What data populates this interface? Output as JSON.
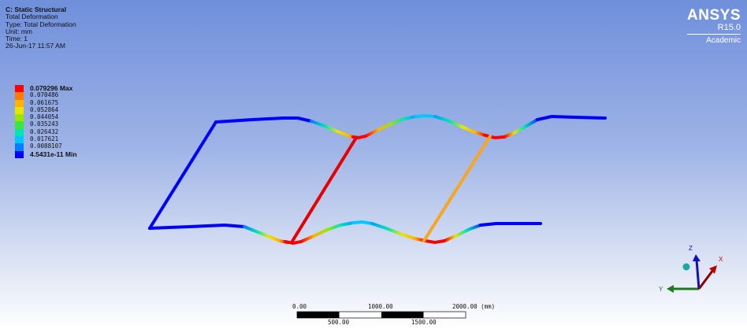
{
  "info": {
    "system": "C: Static Structural",
    "result": "Total Deformation",
    "type": "Type: Total Deformation",
    "unit": "Unit: mm",
    "time": "Time: 1",
    "date": "26-Jun-17 11:57 AM"
  },
  "legend": {
    "entries": [
      {
        "label": "0.079296 Max",
        "color": "#ff0000",
        "bold": true
      },
      {
        "label": "0.070486",
        "color": "#ff7a00",
        "bold": false
      },
      {
        "label": "0.061675",
        "color": "#ffb300",
        "bold": false
      },
      {
        "label": "0.052864",
        "color": "#e6e600",
        "bold": false
      },
      {
        "label": "0.044054",
        "color": "#9ae600",
        "bold": false
      },
      {
        "label": "0.035243",
        "color": "#3ee640",
        "bold": false
      },
      {
        "label": "0.026432",
        "color": "#00e6b3",
        "bold": false
      },
      {
        "label": "0.017621",
        "color": "#00c8ff",
        "bold": false
      },
      {
        "label": "0.0088107",
        "color": "#0080ff",
        "bold": false
      },
      {
        "label": "4.5431e-11 Min",
        "color": "#0000ff",
        "bold": true
      }
    ]
  },
  "logo": {
    "brand": "ANSYS",
    "version": "R15.0",
    "edition": "Academic"
  },
  "scale_bar": {
    "top_labels": [
      "0.00",
      "1000.00",
      "2000.00 (mm)"
    ],
    "bottom_labels": [
      "500.00",
      "1500.00"
    ]
  },
  "triad": {
    "x_label": "X",
    "y_label": "Y",
    "z_label": "Z"
  }
}
